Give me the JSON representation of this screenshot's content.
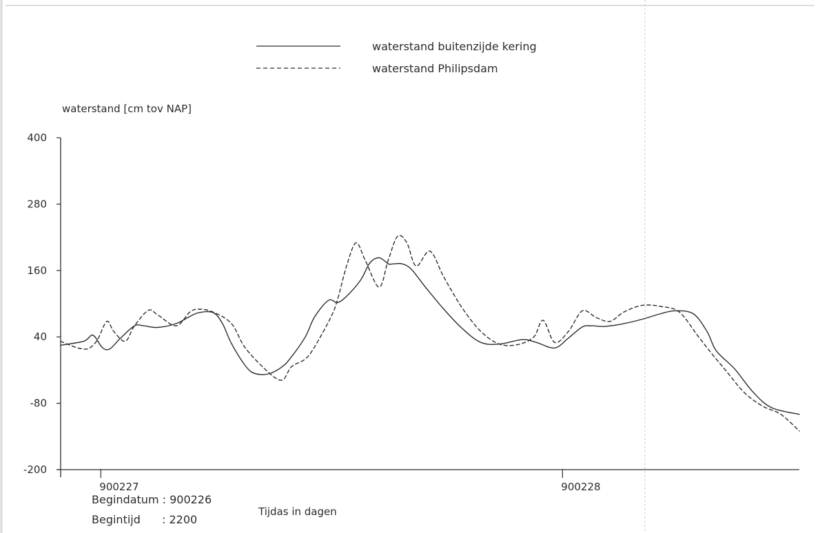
{
  "chart_data": {
    "type": "line",
    "ylabel": "waterstand [cm tov NAP]",
    "xlabel": "Tijdas in dagen",
    "ylim": [
      -200,
      400
    ],
    "y_ticks": [
      400,
      280,
      160,
      40,
      -80,
      -200
    ],
    "xlim": [
      0,
      1.6
    ],
    "x_ticks": [
      {
        "x": 0.087,
        "label": "900227"
      },
      {
        "x": 1.087,
        "label": "900228"
      }
    ],
    "legend_position": "top-center",
    "begin": {
      "datum_label": "Begindatum : 900226",
      "tijd_label": "Begintijd",
      "tijd_value": ": 2200"
    },
    "series": [
      {
        "name": "waterstand buitenzijde kering",
        "style": "solid",
        "color": "#2b2b2b",
        "x": [
          0,
          0.05,
          0.07,
          0.09,
          0.106,
          0.13,
          0.16,
          0.18,
          0.21,
          0.25,
          0.28,
          0.3,
          0.33,
          0.35,
          0.37,
          0.4,
          0.42,
          0.45,
          0.48,
          0.5,
          0.53,
          0.55,
          0.58,
          0.6,
          0.62,
          0.65,
          0.67,
          0.69,
          0.71,
          0.72,
          0.74,
          0.76,
          0.79,
          0.83,
          0.87,
          0.91,
          0.95,
          1.0,
          1.03,
          1.07,
          1.1,
          1.13,
          1.15,
          1.18,
          1.22,
          1.26,
          1.3,
          1.33,
          1.37,
          1.4,
          1.42,
          1.46,
          1.5,
          1.54,
          1.6
        ],
        "values": [
          25,
          32,
          43,
          21,
          18,
          38,
          60,
          60,
          57,
          64,
          77,
          84,
          84,
          65,
          28,
          -12,
          -26,
          -27,
          -14,
          4,
          40,
          76,
          106,
          102,
          114,
          143,
          174,
          183,
          172,
          172,
          172,
          162,
          130,
          90,
          55,
          30,
          27,
          35,
          30,
          20,
          38,
          58,
          60,
          59,
          64,
          72,
          82,
          87,
          82,
          50,
          15,
          -18,
          -60,
          -88,
          -100
        ]
      },
      {
        "name": "waterstand Philipsdam",
        "style": "dashed",
        "color": "#2b2b2b",
        "x": [
          0,
          0.03,
          0.05,
          0.063,
          0.08,
          0.1,
          0.115,
          0.14,
          0.16,
          0.19,
          0.21,
          0.25,
          0.28,
          0.3,
          0.33,
          0.37,
          0.4,
          0.45,
          0.48,
          0.5,
          0.53,
          0.55,
          0.585,
          0.6,
          0.62,
          0.64,
          0.66,
          0.69,
          0.71,
          0.73,
          0.75,
          0.77,
          0.8,
          0.83,
          0.87,
          0.91,
          0.95,
          0.99,
          1.025,
          1.045,
          1.07,
          1.1,
          1.13,
          1.16,
          1.19,
          1.22,
          1.26,
          1.3,
          1.34,
          1.38,
          1.41,
          1.44,
          1.48,
          1.52,
          1.56,
          1.6
        ],
        "values": [
          32,
          22,
          18,
          20,
          35,
          68,
          50,
          32,
          60,
          88,
          80,
          60,
          85,
          90,
          85,
          64,
          20,
          -24,
          -38,
          -14,
          0,
          22,
          75,
          108,
          170,
          210,
          178,
          130,
          180,
          222,
          210,
          168,
          195,
          148,
          92,
          50,
          27,
          26,
          40,
          70,
          30,
          50,
          87,
          75,
          68,
          85,
          97,
          95,
          85,
          42,
          10,
          -20,
          -60,
          -85,
          -100,
          -130
        ]
      }
    ]
  }
}
